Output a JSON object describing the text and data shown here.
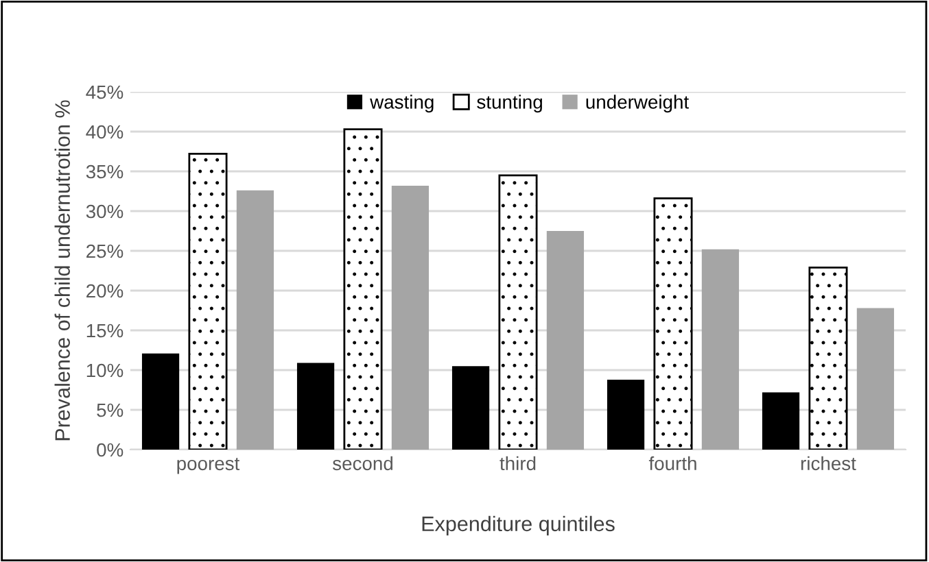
{
  "chart_data": {
    "type": "bar",
    "xlabel": "Expenditure quintiles",
    "ylabel": "Prevalence of child undernutrotion %",
    "categories": [
      "poorest",
      "second",
      "third",
      "fourth",
      "richest"
    ],
    "series": [
      {
        "name": "wasting",
        "color": "#000000",
        "values": [
          12.1,
          10.9,
          10.5,
          8.8,
          7.2
        ]
      },
      {
        "name": "stunting",
        "color": "#ffffff",
        "values": [
          37.2,
          40.3,
          34.5,
          31.6,
          22.9
        ]
      },
      {
        "name": "underweight",
        "color": "#a5a5a5",
        "values": [
          32.6,
          33.2,
          27.5,
          25.2,
          17.8
        ]
      }
    ],
    "ylim": [
      0,
      45
    ],
    "yticks": [
      {
        "value": 0,
        "label": "0%"
      },
      {
        "value": 5,
        "label": "5%"
      },
      {
        "value": 10,
        "label": "10%"
      },
      {
        "value": 15,
        "label": "15%"
      },
      {
        "value": 20,
        "label": "20%"
      },
      {
        "value": 25,
        "label": "25%"
      },
      {
        "value": 30,
        "label": "30%"
      },
      {
        "value": 35,
        "label": "35%"
      },
      {
        "value": 40,
        "label": "40%"
      },
      {
        "value": 45,
        "label": "45%"
      }
    ],
    "grid": "y",
    "legend": "top"
  }
}
